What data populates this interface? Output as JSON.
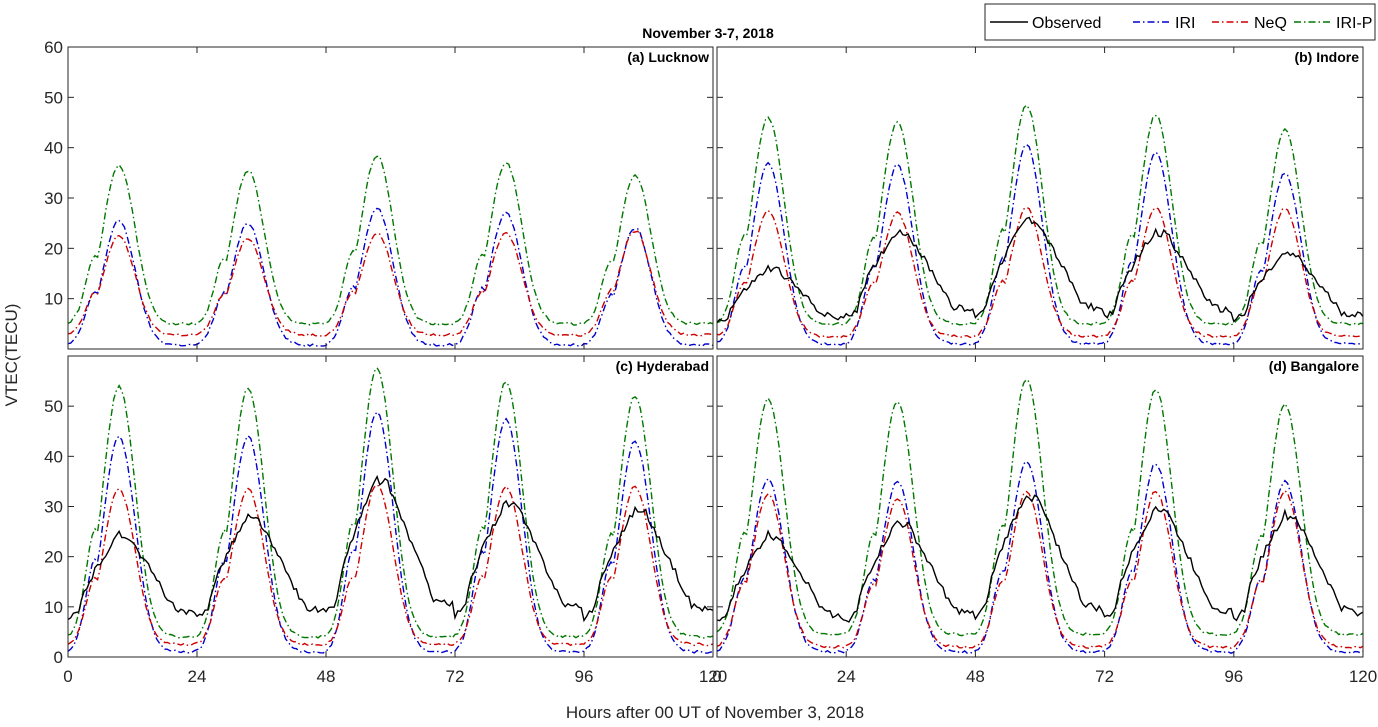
{
  "figure": {
    "title": "November 3-7, 2018",
    "xlabel": "Hours after 00 UT of November 3, 2018",
    "ylabel": "VTEC(TECU)"
  },
  "legend": [
    {
      "name": "Observed",
      "color": "#000000",
      "dash": "solid"
    },
    {
      "name": "IRI",
      "color": "#0000cc",
      "dash": "dashdot"
    },
    {
      "name": "NeQ",
      "color": "#cc0000",
      "dash": "dashdot"
    },
    {
      "name": "IRI-P",
      "color": "#007700",
      "dash": "dashdot"
    }
  ],
  "chart_data": [
    {
      "type": "line",
      "title": "(a) Lucknow",
      "xlim": [
        0,
        120
      ],
      "ylim": [
        0,
        60
      ],
      "xticks": [
        0,
        24,
        48,
        72,
        96,
        120
      ],
      "yticks": [
        10,
        20,
        30,
        40,
        50,
        60
      ],
      "series": [
        {
          "name": "IRI",
          "peaks": [
            25.5,
            25,
            28,
            27,
            24
          ],
          "night": 0.8
        },
        {
          "name": "NeQ",
          "peaks": [
            22.5,
            22,
            23,
            23,
            23.5
          ],
          "night": 2.8
        },
        {
          "name": "IRI-P",
          "peaks": [
            36.5,
            35.5,
            38.5,
            37,
            34.5
          ],
          "night": 5
        }
      ]
    },
    {
      "type": "line",
      "title": "(b) Indore",
      "xlim": [
        0,
        120
      ],
      "ylim": [
        0,
        60
      ],
      "xticks": [
        0,
        24,
        48,
        72,
        96,
        120
      ],
      "yticks": [
        10,
        20,
        30,
        40,
        50,
        60
      ],
      "series": [
        {
          "name": "Observed",
          "peaks": [
            16,
            23.5,
            26,
            23.5,
            19
          ],
          "night": 4
        },
        {
          "name": "IRI",
          "peaks": [
            37,
            36.5,
            40.5,
            39,
            35
          ],
          "night": 1
        },
        {
          "name": "NeQ",
          "peaks": [
            27.5,
            27,
            28,
            28,
            28
          ],
          "night": 2.5
        },
        {
          "name": "IRI-P",
          "peaks": [
            46,
            45,
            48.5,
            46.5,
            43.5
          ],
          "night": 5
        }
      ]
    },
    {
      "type": "line",
      "title": "(c) Hyderabad",
      "xlim": [
        0,
        120
      ],
      "ylim": [
        0,
        60
      ],
      "xticks": [
        0,
        24,
        48,
        72,
        96,
        120
      ],
      "yticks": [
        0,
        10,
        20,
        30,
        40,
        50
      ],
      "series": [
        {
          "name": "Observed",
          "peaks": [
            24.5,
            28,
            35.5,
            31,
            29.5
          ],
          "night": 5
        },
        {
          "name": "IRI",
          "peaks": [
            44,
            44,
            49,
            47.5,
            43
          ],
          "night": 1
        },
        {
          "name": "NeQ",
          "peaks": [
            33.5,
            33.5,
            34.5,
            34,
            34
          ],
          "night": 2.5
        },
        {
          "name": "IRI-P",
          "peaks": [
            54,
            53.5,
            57.5,
            55,
            52
          ],
          "night": 4
        }
      ]
    },
    {
      "type": "line",
      "title": "(d) Bangalore",
      "xlim": [
        0,
        120
      ],
      "ylim": [
        0,
        60
      ],
      "xticks": [
        0,
        24,
        48,
        72,
        96,
        120
      ],
      "yticks": [
        0,
        10,
        20,
        30,
        40,
        50
      ],
      "series": [
        {
          "name": "Observed",
          "peaks": [
            24.5,
            27,
            32.5,
            30,
            28.5
          ],
          "night": 4.5
        },
        {
          "name": "IRI",
          "peaks": [
            35.5,
            35,
            39,
            38.5,
            35
          ],
          "night": 1
        },
        {
          "name": "NeQ",
          "peaks": [
            32.5,
            31.5,
            33,
            33,
            33
          ],
          "night": 2
        },
        {
          "name": "IRI-P",
          "peaks": [
            51.5,
            51,
            55.5,
            53.5,
            50.5
          ],
          "night": 4.5
        }
      ]
    }
  ]
}
